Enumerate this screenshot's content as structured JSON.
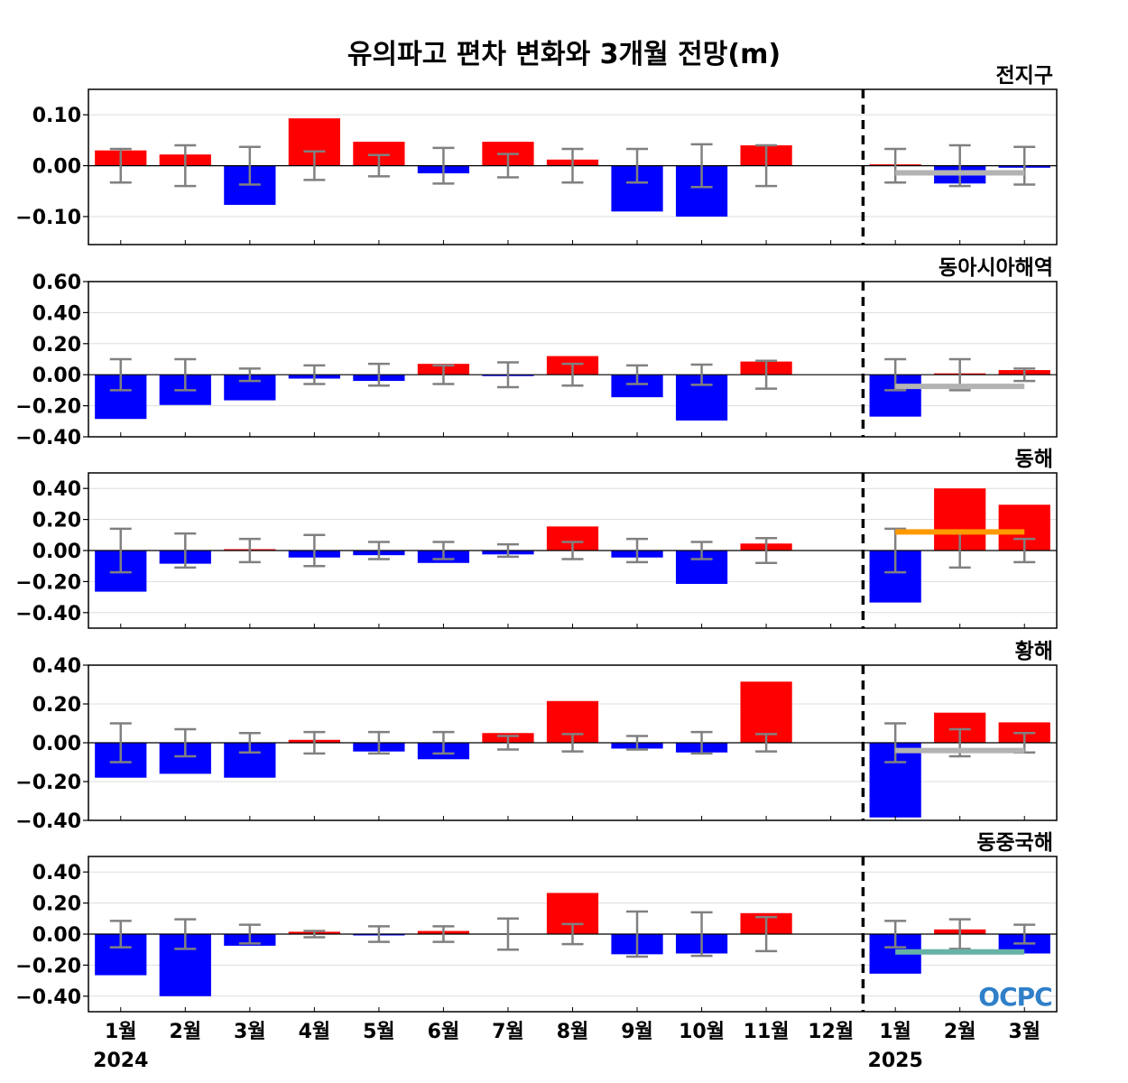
{
  "title": "유의파고 편차 변화와 3개월 전망(m)",
  "logo": "OCPC",
  "colors": {
    "positive": "#ff0000",
    "negative": "#0000ff",
    "error_bar": "#808080"
  },
  "chart_data": {
    "type": "bar",
    "title": "유의파고 편차 변화와 3개월 전망(m)",
    "categories": [
      "1월",
      "2월",
      "3월",
      "4월",
      "5월",
      "6월",
      "7월",
      "8월",
      "9월",
      "10월",
      "11월",
      "12월",
      "1월",
      "2월",
      "3월"
    ],
    "year_labels": [
      {
        "index": 0,
        "label": "2024"
      },
      {
        "index": 12,
        "label": "2025"
      }
    ],
    "divider_after_index": 11,
    "panels": [
      {
        "name": "전지구",
        "ylim": [
          -0.155,
          0.15
        ],
        "yticks": [
          0.1,
          0,
          -0.1
        ],
        "ytick_labels": [
          "0.10",
          "0.00",
          "−0.10"
        ],
        "values": [
          0.03,
          0.022,
          -0.077,
          0.093,
          0.047,
          -0.015,
          0.047,
          0.012,
          -0.09,
          -0.1,
          0.04,
          0.0,
          0.002,
          -0.035,
          -0.004
        ],
        "errors": [
          0.033,
          0.04,
          0.037,
          0.028,
          0.021,
          0.035,
          0.023,
          0.033,
          0.033,
          0.042,
          0.04,
          0.0,
          0.033,
          0.04,
          0.037
        ],
        "outlook": {
          "value": -0.014,
          "color": "#b3b3b3"
        }
      },
      {
        "name": "동아시아해역",
        "ylim": [
          -0.4,
          0.6
        ],
        "yticks": [
          0.6,
          0.4,
          0.2,
          0,
          -0.2,
          -0.4
        ],
        "ytick_labels": [
          "0.60",
          "0.40",
          "0.20",
          "0.00",
          "−0.20",
          "−0.40"
        ],
        "values": [
          -0.285,
          -0.195,
          -0.165,
          -0.025,
          -0.04,
          0.07,
          -0.005,
          0.12,
          -0.145,
          -0.295,
          0.085,
          0.0,
          -0.27,
          0.005,
          0.03
        ],
        "errors": [
          0.1,
          0.1,
          0.04,
          0.06,
          0.07,
          0.06,
          0.08,
          0.07,
          0.06,
          0.065,
          0.09,
          0.0,
          0.1,
          0.1,
          0.04
        ],
        "outlook": {
          "value": -0.075,
          "color": "#b3b3b3"
        }
      },
      {
        "name": "동해",
        "ylim": [
          -0.5,
          0.5
        ],
        "yticks": [
          0.4,
          0.2,
          0,
          -0.2,
          -0.4
        ],
        "ytick_labels": [
          "0.40",
          "0.20",
          "0.00",
          "−0.20",
          "−0.40"
        ],
        "values": [
          -0.265,
          -0.085,
          0.005,
          -0.045,
          -0.03,
          -0.08,
          -0.025,
          0.155,
          -0.045,
          -0.215,
          0.045,
          0.0,
          -0.335,
          0.4,
          0.295
        ],
        "errors": [
          0.14,
          0.11,
          0.075,
          0.1,
          0.055,
          0.055,
          0.04,
          0.055,
          0.075,
          0.055,
          0.08,
          0.0,
          0.14,
          0.11,
          0.075
        ],
        "outlook": {
          "value": 0.12,
          "color": "#ff9900"
        }
      },
      {
        "name": "황해",
        "ylim": [
          -0.4,
          0.4
        ],
        "yticks": [
          0.4,
          0.2,
          0,
          -0.2,
          -0.4
        ],
        "ytick_labels": [
          "0.40",
          "0.20",
          "0.00",
          "−0.20",
          "−0.40"
        ],
        "values": [
          -0.18,
          -0.16,
          -0.18,
          0.015,
          -0.045,
          -0.085,
          0.05,
          0.215,
          -0.03,
          -0.05,
          0.315,
          0.0,
          -0.385,
          0.155,
          0.105
        ],
        "errors": [
          0.1,
          0.07,
          0.05,
          0.055,
          0.055,
          0.055,
          0.035,
          0.045,
          0.035,
          0.055,
          0.045,
          0.0,
          0.1,
          0.07,
          0.05
        ],
        "outlook": {
          "value": -0.04,
          "color": "#b3b3b3"
        }
      },
      {
        "name": "동중국해",
        "ylim": [
          -0.5,
          0.5
        ],
        "yticks": [
          0.4,
          0.2,
          0,
          -0.2,
          -0.4
        ],
        "ytick_labels": [
          "0.40",
          "0.20",
          "0.00",
          "−0.20",
          "−0.40"
        ],
        "values": [
          -0.265,
          -0.4,
          -0.075,
          0.015,
          -0.005,
          0.02,
          0.0,
          0.265,
          -0.13,
          -0.125,
          0.135,
          0.0,
          -0.255,
          0.03,
          -0.125
        ],
        "errors": [
          0.085,
          0.095,
          0.06,
          0.02,
          0.05,
          0.05,
          0.1,
          0.065,
          0.145,
          0.14,
          0.11,
          0.0,
          0.085,
          0.095,
          0.06
        ],
        "outlook": {
          "value": -0.115,
          "color": "#66b3a6"
        }
      }
    ]
  }
}
